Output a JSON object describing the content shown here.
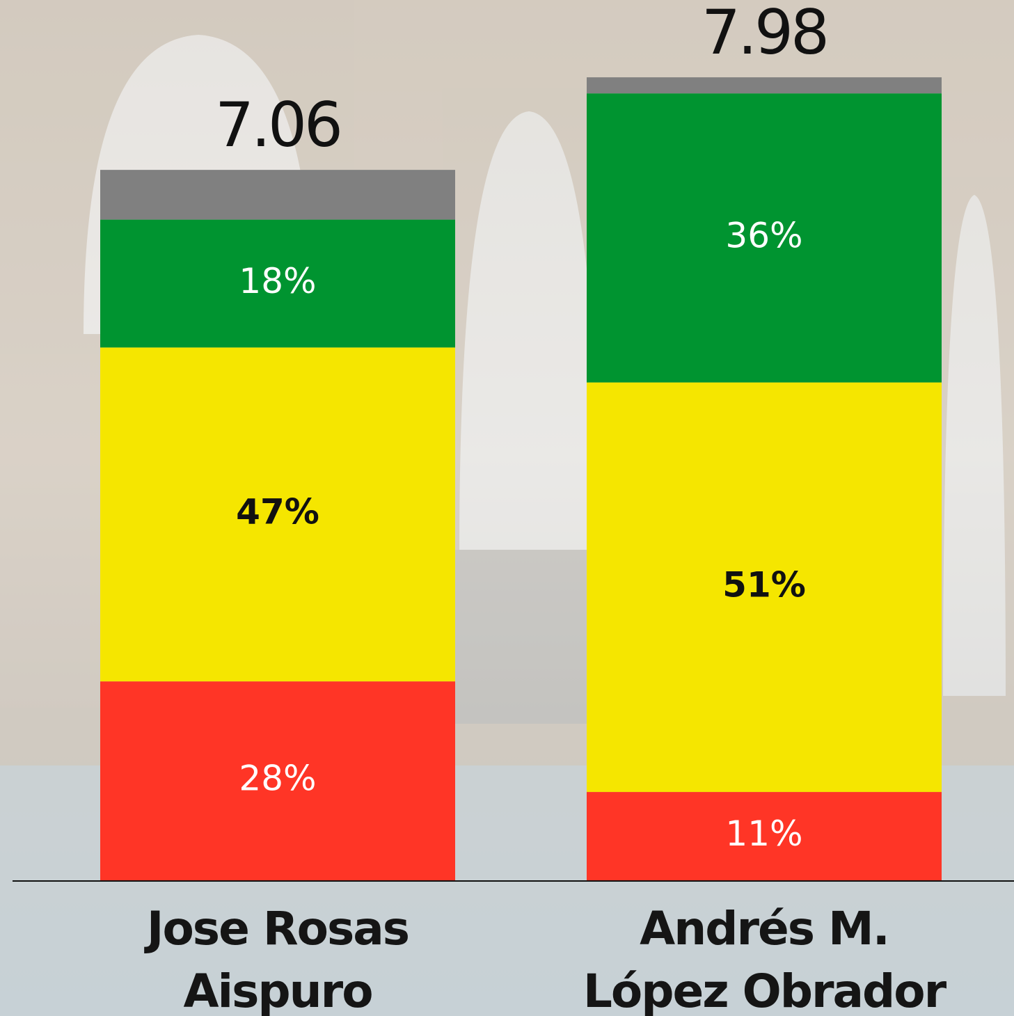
{
  "chart_data": {
    "type": "stacked-bar",
    "categories": [
      "Jose Rosas Aispuro",
      "Andrés M. López Obrador"
    ],
    "scores": [
      7.06,
      7.98
    ],
    "series": [
      {
        "color": "#ff3526",
        "values": [
          28,
          11
        ],
        "value_labels": [
          "28%",
          "11%"
        ],
        "label_color": "#ffffff"
      },
      {
        "color": "#f5e600",
        "values": [
          47,
          51
        ],
        "value_labels": [
          "47%",
          "51%"
        ],
        "label_color": "#111111"
      },
      {
        "color": "#009430",
        "values": [
          18,
          36
        ],
        "value_labels": [
          "18%",
          "36%"
        ],
        "label_color": "#ffffff"
      },
      {
        "color": "#808080",
        "values": [
          7,
          2
        ]
      }
    ]
  }
}
